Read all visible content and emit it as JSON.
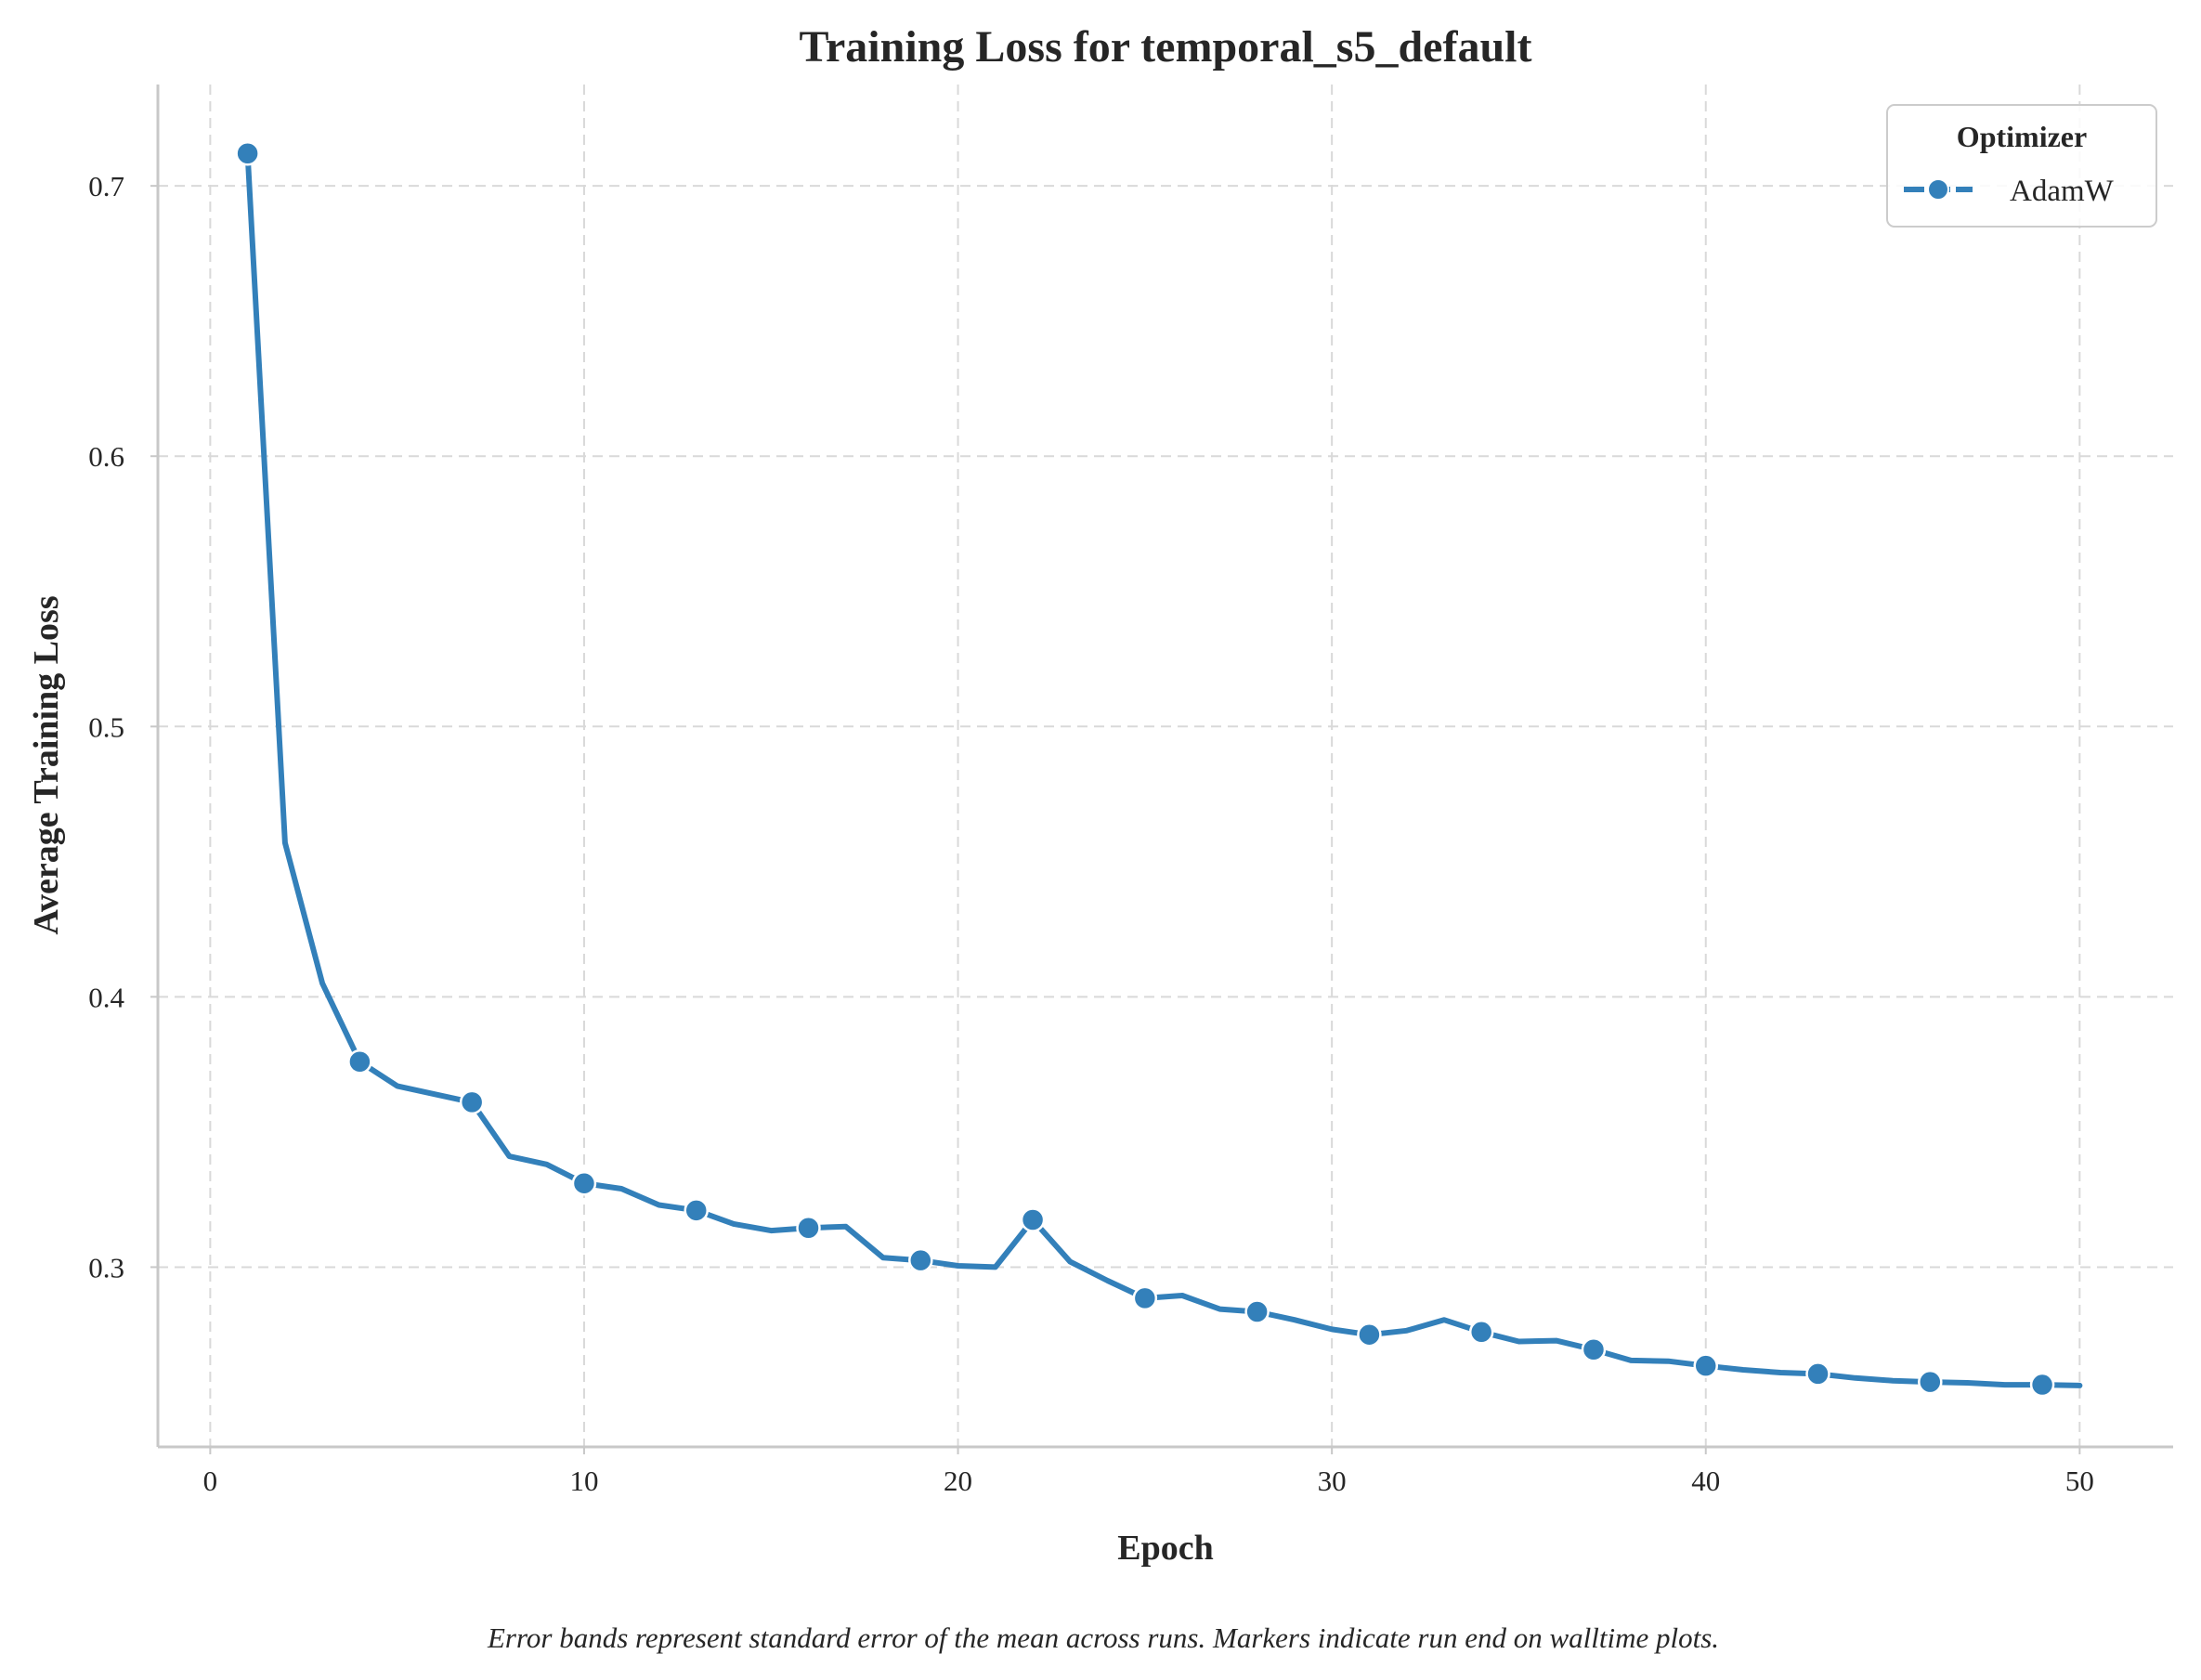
{
  "chart_data": {
    "type": "line",
    "title": "Training Loss for temporal_s5_default",
    "xlabel": "Epoch",
    "ylabel": "Average Training Loss",
    "xlim": [
      -1.4,
      52.5
    ],
    "ylim": [
      0.2335,
      0.7375
    ],
    "xticks": [
      0,
      10,
      20,
      30,
      40,
      50
    ],
    "yticks": [
      0.3,
      0.4,
      0.5,
      0.6,
      0.7
    ],
    "xtick_labels": [
      "0",
      "10",
      "20",
      "30",
      "40",
      "50"
    ],
    "ytick_labels": [
      "0.3",
      "0.4",
      "0.5",
      "0.6",
      "0.7"
    ],
    "grid": true,
    "legend": {
      "title": "Optimizer",
      "placement": "top-right",
      "entries": [
        "AdamW"
      ]
    },
    "series": [
      {
        "name": "AdamW",
        "color": "#3380ba",
        "x": [
          1,
          2,
          3,
          4,
          5,
          6,
          7,
          8,
          9,
          10,
          11,
          12,
          13,
          14,
          15,
          16,
          17,
          18,
          19,
          20,
          21,
          22,
          23,
          24,
          25,
          26,
          27,
          28,
          29,
          30,
          31,
          32,
          33,
          34,
          35,
          36,
          37,
          38,
          39,
          40,
          41,
          42,
          43,
          44,
          45,
          46,
          47,
          48,
          49,
          50
        ],
        "y": [
          0.712,
          0.457,
          0.405,
          0.376,
          0.367,
          0.364,
          0.361,
          0.341,
          0.338,
          0.331,
          0.329,
          0.323,
          0.321,
          0.316,
          0.3135,
          0.3145,
          0.315,
          0.3035,
          0.3025,
          0.3005,
          0.3,
          0.3175,
          0.302,
          0.295,
          0.2885,
          0.2895,
          0.2845,
          0.2835,
          0.2805,
          0.277,
          0.275,
          0.2765,
          0.2805,
          0.276,
          0.2725,
          0.2728,
          0.2695,
          0.2655,
          0.2652,
          0.2635,
          0.262,
          0.261,
          0.2605,
          0.259,
          0.258,
          0.2575,
          0.2572,
          0.2565,
          0.2565,
          0.2562
        ],
        "marker_x": [
          1,
          4,
          7,
          10,
          13,
          16,
          19,
          22,
          25,
          28,
          31,
          34,
          37,
          40,
          43,
          46,
          49
        ]
      }
    ]
  },
  "caption": "Error bands represent standard error of the mean across runs. Markers indicate run end on walltime plots."
}
